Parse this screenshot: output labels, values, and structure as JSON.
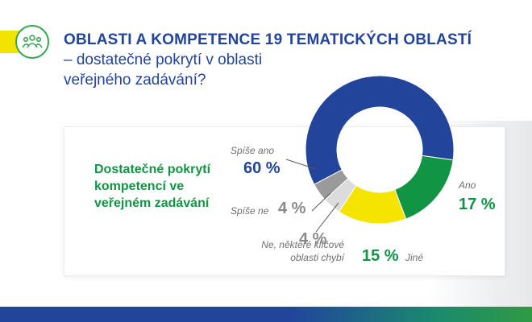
{
  "header": {
    "title_line1": "OBLASTI A KOMPETENCE 19 TEMATICKÝCH OBLASTÍ",
    "title_line2": "– dostatečné pokrytí v oblasti",
    "title_line3": "veřejného zadávání?",
    "icon": "people-group-icon"
  },
  "card": {
    "title": "Dostatečné pokrytí kompetencí ve veřejném zadávání"
  },
  "colors": {
    "blue": "#22459b",
    "green": "#119443",
    "yellow": "#f5e400",
    "gray": "#9a9a9a",
    "lightgray": "#dcdcdc"
  },
  "chart_data": {
    "type": "pie",
    "donut": true,
    "title": "",
    "categories": [
      "Spíše ano",
      "Ano",
      "Jiné",
      "Ne, některé klíčové oblasti chybí",
      "Spíše ne"
    ],
    "values": [
      60,
      17,
      15,
      4,
      4
    ],
    "value_labels": [
      "60 %",
      "17 %",
      "15 %",
      "4 %",
      "4 %"
    ],
    "slice_colors": [
      "#22459b",
      "#119443",
      "#f5e400",
      "#dcdcdc",
      "#9a9a9a"
    ]
  }
}
